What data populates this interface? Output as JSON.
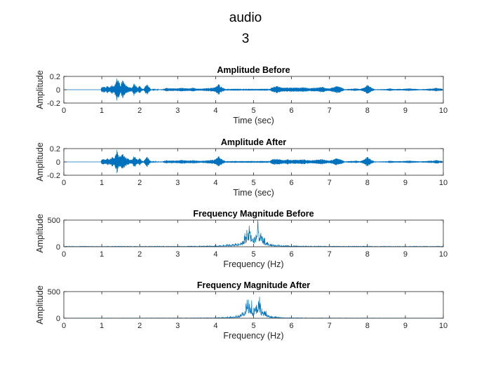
{
  "figure": {
    "title_line1": "audio",
    "title_line2": "3"
  },
  "chart_data": [
    {
      "type": "line",
      "signal": "waveform",
      "title": "Amplitude Before",
      "xlabel": "Time (sec)",
      "ylabel": "Amplitude",
      "xlim": [
        0,
        10
      ],
      "ylim": [
        -0.2,
        0.2
      ],
      "xticks": [
        0,
        1,
        2,
        3,
        4,
        5,
        6,
        7,
        8,
        9,
        10
      ],
      "yticks": [
        0.2,
        0,
        -0.2
      ],
      "ytick_labels": [
        "0.2",
        "0",
        "-0.2"
      ],
      "color": "#0072BD",
      "envelope": [
        {
          "x": 0.98,
          "a": 0.02
        },
        {
          "x": 1.0,
          "a": 0.04
        },
        {
          "x": 1.05,
          "a": 0.05
        },
        {
          "x": 1.1,
          "a": 0.03
        },
        {
          "x": 1.15,
          "a": 0.06
        },
        {
          "x": 1.2,
          "a": 0.04
        },
        {
          "x": 1.28,
          "a": 0.08
        },
        {
          "x": 1.33,
          "a": 0.05
        },
        {
          "x": 1.4,
          "a": 0.19
        },
        {
          "x": 1.45,
          "a": 0.12
        },
        {
          "x": 1.5,
          "a": 0.07
        },
        {
          "x": 1.55,
          "a": 0.16
        },
        {
          "x": 1.6,
          "a": 0.09
        },
        {
          "x": 1.65,
          "a": 0.07
        },
        {
          "x": 1.72,
          "a": 0.04
        },
        {
          "x": 1.8,
          "a": 0.03
        },
        {
          "x": 1.85,
          "a": 0.1
        },
        {
          "x": 1.9,
          "a": 0.06
        },
        {
          "x": 1.95,
          "a": 0.03
        },
        {
          "x": 2.0,
          "a": 0.06
        },
        {
          "x": 2.05,
          "a": 0.02
        },
        {
          "x": 2.1,
          "a": 0.01
        },
        {
          "x": 2.15,
          "a": 0.06
        },
        {
          "x": 2.2,
          "a": 0.08
        },
        {
          "x": 2.25,
          "a": 0.04
        },
        {
          "x": 2.3,
          "a": 0.005
        },
        {
          "x": 2.6,
          "a": 0.006
        },
        {
          "x": 2.7,
          "a": 0.03
        },
        {
          "x": 2.8,
          "a": 0.02
        },
        {
          "x": 2.9,
          "a": 0.025
        },
        {
          "x": 3.0,
          "a": 0.02
        },
        {
          "x": 3.1,
          "a": 0.03
        },
        {
          "x": 3.2,
          "a": 0.025
        },
        {
          "x": 3.3,
          "a": 0.02
        },
        {
          "x": 3.4,
          "a": 0.03
        },
        {
          "x": 3.5,
          "a": 0.02
        },
        {
          "x": 3.6,
          "a": 0.015
        },
        {
          "x": 3.7,
          "a": 0.02
        },
        {
          "x": 3.8,
          "a": 0.025
        },
        {
          "x": 3.9,
          "a": 0.03
        },
        {
          "x": 4.0,
          "a": 0.04
        },
        {
          "x": 4.08,
          "a": 0.09
        },
        {
          "x": 4.12,
          "a": 0.06
        },
        {
          "x": 4.2,
          "a": 0.03
        },
        {
          "x": 4.3,
          "a": 0.004
        },
        {
          "x": 5.4,
          "a": 0.004
        },
        {
          "x": 5.5,
          "a": 0.04
        },
        {
          "x": 5.6,
          "a": 0.06
        },
        {
          "x": 5.7,
          "a": 0.04
        },
        {
          "x": 5.8,
          "a": 0.03
        },
        {
          "x": 5.9,
          "a": 0.04
        },
        {
          "x": 6.0,
          "a": 0.03
        },
        {
          "x": 6.1,
          "a": 0.035
        },
        {
          "x": 6.2,
          "a": 0.03
        },
        {
          "x": 6.3,
          "a": 0.04
        },
        {
          "x": 6.4,
          "a": 0.03
        },
        {
          "x": 6.5,
          "a": 0.025
        },
        {
          "x": 6.6,
          "a": 0.03
        },
        {
          "x": 6.7,
          "a": 0.035
        },
        {
          "x": 6.8,
          "a": 0.045
        },
        {
          "x": 6.9,
          "a": 0.03
        },
        {
          "x": 7.0,
          "a": 0.02
        },
        {
          "x": 7.1,
          "a": 0.04
        },
        {
          "x": 7.2,
          "a": 0.06
        },
        {
          "x": 7.3,
          "a": 0.04
        },
        {
          "x": 7.4,
          "a": 0.008
        },
        {
          "x": 7.6,
          "a": 0.015
        },
        {
          "x": 7.7,
          "a": 0.02
        },
        {
          "x": 7.8,
          "a": 0.01
        },
        {
          "x": 7.9,
          "a": 0.03
        },
        {
          "x": 8.0,
          "a": 0.08
        },
        {
          "x": 8.05,
          "a": 0.06
        },
        {
          "x": 8.1,
          "a": 0.03
        },
        {
          "x": 8.2,
          "a": 0.006
        },
        {
          "x": 8.5,
          "a": 0.01
        },
        {
          "x": 8.6,
          "a": 0.02
        },
        {
          "x": 8.7,
          "a": 0.01
        },
        {
          "x": 9.0,
          "a": 0.015
        },
        {
          "x": 9.1,
          "a": 0.02
        },
        {
          "x": 9.2,
          "a": 0.015
        },
        {
          "x": 9.4,
          "a": 0.008
        },
        {
          "x": 9.6,
          "a": 0.015
        },
        {
          "x": 9.75,
          "a": 0.02
        },
        {
          "x": 9.8,
          "a": 0.03
        },
        {
          "x": 9.9,
          "a": 0.02
        },
        {
          "x": 9.97,
          "a": 0.015
        }
      ]
    },
    {
      "type": "line",
      "signal": "waveform",
      "title": "Amplitude After",
      "xlabel": "Time (sec)",
      "ylabel": "Amplitude",
      "xlim": [
        0,
        10
      ],
      "ylim": [
        -0.2,
        0.2
      ],
      "xticks": [
        0,
        1,
        2,
        3,
        4,
        5,
        6,
        7,
        8,
        9,
        10
      ],
      "yticks": [
        0.2,
        0,
        -0.2
      ],
      "ytick_labels": [
        "0.2",
        "0",
        "-0.2"
      ],
      "color": "#0072BD",
      "envelope": [
        {
          "x": 0.98,
          "a": 0.02
        },
        {
          "x": 1.0,
          "a": 0.04
        },
        {
          "x": 1.05,
          "a": 0.05
        },
        {
          "x": 1.1,
          "a": 0.03
        },
        {
          "x": 1.15,
          "a": 0.06
        },
        {
          "x": 1.2,
          "a": 0.04
        },
        {
          "x": 1.28,
          "a": 0.08
        },
        {
          "x": 1.33,
          "a": 0.05
        },
        {
          "x": 1.4,
          "a": 0.18
        },
        {
          "x": 1.45,
          "a": 0.12
        },
        {
          "x": 1.5,
          "a": 0.07
        },
        {
          "x": 1.55,
          "a": 0.15
        },
        {
          "x": 1.6,
          "a": 0.09
        },
        {
          "x": 1.65,
          "a": 0.07
        },
        {
          "x": 1.72,
          "a": 0.04
        },
        {
          "x": 1.8,
          "a": 0.03
        },
        {
          "x": 1.85,
          "a": 0.1
        },
        {
          "x": 1.9,
          "a": 0.06
        },
        {
          "x": 1.95,
          "a": 0.03
        },
        {
          "x": 2.0,
          "a": 0.06
        },
        {
          "x": 2.05,
          "a": 0.02
        },
        {
          "x": 2.1,
          "a": 0.01
        },
        {
          "x": 2.15,
          "a": 0.06
        },
        {
          "x": 2.2,
          "a": 0.08
        },
        {
          "x": 2.25,
          "a": 0.04
        },
        {
          "x": 2.3,
          "a": 0.005
        },
        {
          "x": 2.6,
          "a": 0.006
        },
        {
          "x": 2.7,
          "a": 0.03
        },
        {
          "x": 2.8,
          "a": 0.02
        },
        {
          "x": 2.9,
          "a": 0.025
        },
        {
          "x": 3.0,
          "a": 0.02
        },
        {
          "x": 3.1,
          "a": 0.03
        },
        {
          "x": 3.2,
          "a": 0.025
        },
        {
          "x": 3.3,
          "a": 0.02
        },
        {
          "x": 3.4,
          "a": 0.03
        },
        {
          "x": 3.5,
          "a": 0.02
        },
        {
          "x": 3.6,
          "a": 0.015
        },
        {
          "x": 3.7,
          "a": 0.02
        },
        {
          "x": 3.8,
          "a": 0.025
        },
        {
          "x": 3.9,
          "a": 0.03
        },
        {
          "x": 4.0,
          "a": 0.04
        },
        {
          "x": 4.08,
          "a": 0.09
        },
        {
          "x": 4.12,
          "a": 0.06
        },
        {
          "x": 4.2,
          "a": 0.03
        },
        {
          "x": 4.3,
          "a": 0.004
        },
        {
          "x": 5.4,
          "a": 0.004
        },
        {
          "x": 5.5,
          "a": 0.04
        },
        {
          "x": 5.6,
          "a": 0.05
        },
        {
          "x": 5.7,
          "a": 0.04
        },
        {
          "x": 5.8,
          "a": 0.03
        },
        {
          "x": 5.9,
          "a": 0.04
        },
        {
          "x": 6.0,
          "a": 0.03
        },
        {
          "x": 6.1,
          "a": 0.035
        },
        {
          "x": 6.2,
          "a": 0.03
        },
        {
          "x": 6.3,
          "a": 0.04
        },
        {
          "x": 6.4,
          "a": 0.03
        },
        {
          "x": 6.5,
          "a": 0.025
        },
        {
          "x": 6.6,
          "a": 0.03
        },
        {
          "x": 6.7,
          "a": 0.035
        },
        {
          "x": 6.8,
          "a": 0.045
        },
        {
          "x": 6.9,
          "a": 0.03
        },
        {
          "x": 7.0,
          "a": 0.02
        },
        {
          "x": 7.1,
          "a": 0.04
        },
        {
          "x": 7.2,
          "a": 0.06
        },
        {
          "x": 7.3,
          "a": 0.04
        },
        {
          "x": 7.4,
          "a": 0.008
        },
        {
          "x": 7.6,
          "a": 0.015
        },
        {
          "x": 7.7,
          "a": 0.02
        },
        {
          "x": 7.8,
          "a": 0.01
        },
        {
          "x": 7.9,
          "a": 0.03
        },
        {
          "x": 8.0,
          "a": 0.08
        },
        {
          "x": 8.05,
          "a": 0.06
        },
        {
          "x": 8.1,
          "a": 0.03
        },
        {
          "x": 8.2,
          "a": 0.006
        },
        {
          "x": 8.5,
          "a": 0.01
        },
        {
          "x": 8.6,
          "a": 0.02
        },
        {
          "x": 8.7,
          "a": 0.01
        },
        {
          "x": 9.0,
          "a": 0.015
        },
        {
          "x": 9.1,
          "a": 0.02
        },
        {
          "x": 9.2,
          "a": 0.015
        },
        {
          "x": 9.4,
          "a": 0.008
        },
        {
          "x": 9.6,
          "a": 0.015
        },
        {
          "x": 9.75,
          "a": 0.02
        },
        {
          "x": 9.8,
          "a": 0.03
        },
        {
          "x": 9.9,
          "a": 0.02
        },
        {
          "x": 9.97,
          "a": 0.015
        }
      ]
    },
    {
      "type": "line",
      "signal": "spectrum",
      "title": "Frequency Magnitude Before",
      "xlabel": "Frequency (Hz)",
      "ylabel": "Amplitude",
      "xlim": [
        0,
        10
      ],
      "ylim": [
        0,
        500
      ],
      "xticks": [
        0,
        1,
        2,
        3,
        4,
        5,
        6,
        7,
        8,
        9,
        10
      ],
      "yticks": [
        500,
        0
      ],
      "ytick_labels": [
        "500",
        "0"
      ],
      "color": "#0072BD",
      "envelope": [
        {
          "x": 0.0,
          "a": 8
        },
        {
          "x": 1.0,
          "a": 8
        },
        {
          "x": 2.0,
          "a": 9
        },
        {
          "x": 3.0,
          "a": 10
        },
        {
          "x": 3.5,
          "a": 12
        },
        {
          "x": 3.8,
          "a": 15
        },
        {
          "x": 4.0,
          "a": 20
        },
        {
          "x": 4.2,
          "a": 35
        },
        {
          "x": 4.4,
          "a": 45
        },
        {
          "x": 4.5,
          "a": 55
        },
        {
          "x": 4.6,
          "a": 70
        },
        {
          "x": 4.7,
          "a": 110
        },
        {
          "x": 4.8,
          "a": 260
        },
        {
          "x": 4.85,
          "a": 390
        },
        {
          "x": 4.9,
          "a": 420
        },
        {
          "x": 4.95,
          "a": 300
        },
        {
          "x": 5.0,
          "a": 160
        },
        {
          "x": 5.05,
          "a": 300
        },
        {
          "x": 5.1,
          "a": 410
        },
        {
          "x": 5.15,
          "a": 360
        },
        {
          "x": 5.2,
          "a": 240
        },
        {
          "x": 5.3,
          "a": 130
        },
        {
          "x": 5.4,
          "a": 70
        },
        {
          "x": 5.5,
          "a": 45
        },
        {
          "x": 5.6,
          "a": 30
        },
        {
          "x": 5.8,
          "a": 20
        },
        {
          "x": 6.0,
          "a": 15
        },
        {
          "x": 6.5,
          "a": 12
        },
        {
          "x": 7.0,
          "a": 10
        },
        {
          "x": 8.0,
          "a": 9
        },
        {
          "x": 9.0,
          "a": 8
        },
        {
          "x": 10.0,
          "a": 8
        }
      ]
    },
    {
      "type": "line",
      "signal": "spectrum",
      "title": "Frequency Magnitude After",
      "xlabel": "Frequency (Hz)",
      "ylabel": "Amplitude",
      "xlim": [
        0,
        10
      ],
      "ylim": [
        0,
        500
      ],
      "xticks": [
        0,
        1,
        2,
        3,
        4,
        5,
        6,
        7,
        8,
        9,
        10
      ],
      "yticks": [
        500,
        0
      ],
      "ytick_labels": [
        "500",
        "0"
      ],
      "color": "#0072BD",
      "envelope": [
        {
          "x": 0.0,
          "a": 3
        },
        {
          "x": 1.0,
          "a": 3
        },
        {
          "x": 2.0,
          "a": 4
        },
        {
          "x": 3.0,
          "a": 5
        },
        {
          "x": 3.5,
          "a": 6
        },
        {
          "x": 3.8,
          "a": 8
        },
        {
          "x": 4.0,
          "a": 12
        },
        {
          "x": 4.2,
          "a": 22
        },
        {
          "x": 4.4,
          "a": 32
        },
        {
          "x": 4.5,
          "a": 45
        },
        {
          "x": 4.6,
          "a": 60
        },
        {
          "x": 4.7,
          "a": 100
        },
        {
          "x": 4.8,
          "a": 250
        },
        {
          "x": 4.85,
          "a": 370
        },
        {
          "x": 4.9,
          "a": 410
        },
        {
          "x": 4.95,
          "a": 290
        },
        {
          "x": 5.0,
          "a": 150
        },
        {
          "x": 5.05,
          "a": 290
        },
        {
          "x": 5.1,
          "a": 400
        },
        {
          "x": 5.15,
          "a": 350
        },
        {
          "x": 5.2,
          "a": 230
        },
        {
          "x": 5.3,
          "a": 120
        },
        {
          "x": 5.4,
          "a": 60
        },
        {
          "x": 5.5,
          "a": 35
        },
        {
          "x": 5.6,
          "a": 22
        },
        {
          "x": 5.8,
          "a": 12
        },
        {
          "x": 6.0,
          "a": 8
        },
        {
          "x": 6.5,
          "a": 6
        },
        {
          "x": 7.0,
          "a": 5
        },
        {
          "x": 8.0,
          "a": 4
        },
        {
          "x": 9.0,
          "a": 3
        },
        {
          "x": 10.0,
          "a": 3
        }
      ]
    }
  ]
}
